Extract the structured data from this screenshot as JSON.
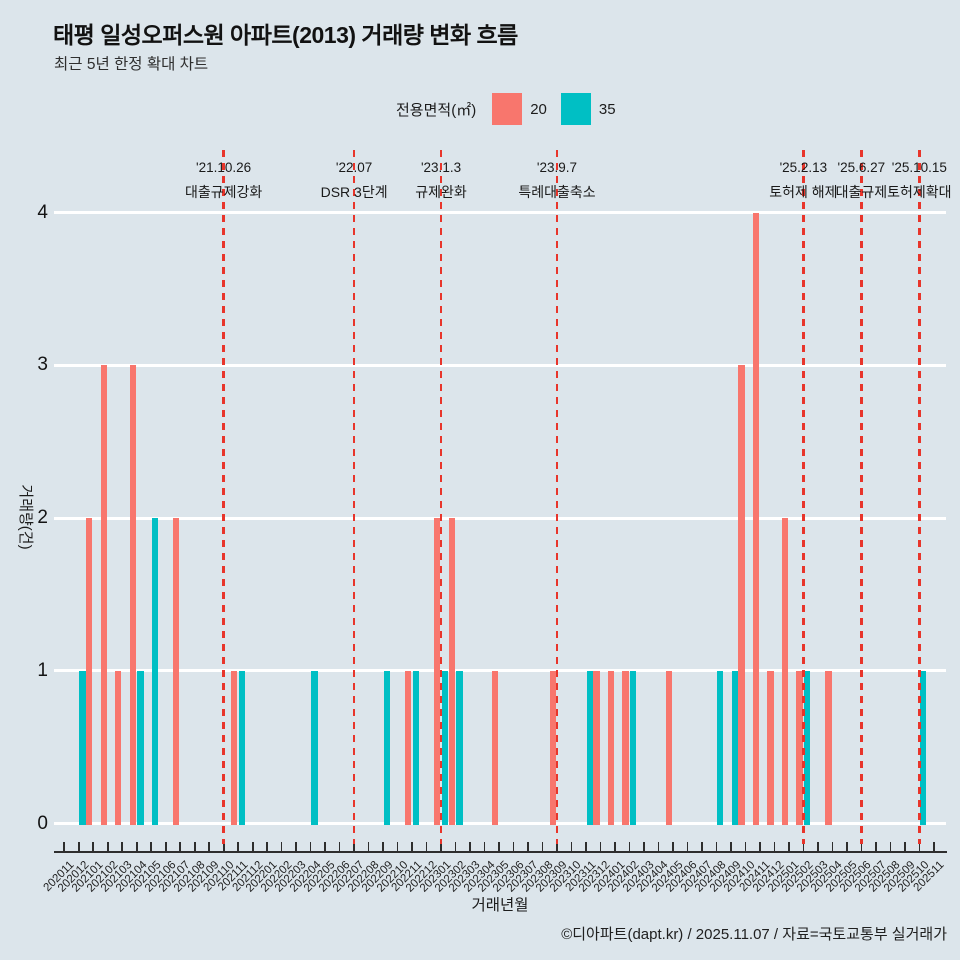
{
  "header": {
    "title": "태평 일성오퍼스원 아파트(2013) 거래량 변화 흐름",
    "subtitle": "최근 5년 한정 확대 차트"
  },
  "legend": {
    "label": "전용면적(㎡)",
    "items": [
      {
        "name": "20",
        "color": "#f8766d"
      },
      {
        "name": "35",
        "color": "#00bfc4"
      }
    ]
  },
  "footer": {
    "credit": "©디아파트(dapt.kr) / 2025.11.07 / 자료=국토교통부 실거래가"
  },
  "chart_data": {
    "type": "bar",
    "title": "태평 일성오퍼스원 아파트(2013) 거래량 변화 흐름",
    "xlabel": "거래년월",
    "ylabel": "거래량(건)",
    "ylim": [
      0,
      4
    ],
    "yticks": [
      0,
      1,
      2,
      3,
      4
    ],
    "grid": "white horizontal major gridlines",
    "legend_position": "top",
    "categories": [
      "202011",
      "202012",
      "202101",
      "202102",
      "202103",
      "202104",
      "202105",
      "202106",
      "202107",
      "202108",
      "202109",
      "202110",
      "202111",
      "202112",
      "202201",
      "202202",
      "202203",
      "202204",
      "202205",
      "202206",
      "202207",
      "202208",
      "202209",
      "202210",
      "202211",
      "202212",
      "202301",
      "202302",
      "202303",
      "202304",
      "202305",
      "202306",
      "202307",
      "202308",
      "202309",
      "202310",
      "202311",
      "202312",
      "202401",
      "202402",
      "202403",
      "202404",
      "202405",
      "202406",
      "202407",
      "202408",
      "202409",
      "202410",
      "202411",
      "202412",
      "202501",
      "202502",
      "202503",
      "202504",
      "202505",
      "202506",
      "202507",
      "202508",
      "202509",
      "202510",
      "202511"
    ],
    "series": [
      {
        "name": "20",
        "color": "#f8766d",
        "values": [
          0,
          0,
          2,
          3,
          1,
          3,
          0,
          0,
          2,
          0,
          0,
          0,
          1,
          0,
          0,
          0,
          0,
          0,
          0,
          0,
          0,
          0,
          0,
          0,
          1,
          0,
          2,
          2,
          0,
          0,
          1,
          0,
          0,
          0,
          1,
          0,
          0,
          1,
          1,
          1,
          0,
          0,
          1,
          0,
          0,
          0,
          0,
          3,
          4,
          1,
          2,
          1,
          0,
          1,
          0,
          0,
          0,
          0,
          0,
          0,
          0
        ]
      },
      {
        "name": "35",
        "color": "#00bfc4",
        "values": [
          0,
          1,
          0,
          0,
          0,
          1,
          2,
          0,
          0,
          0,
          0,
          0,
          1,
          0,
          0,
          0,
          0,
          1,
          0,
          0,
          0,
          0,
          1,
          0,
          1,
          0,
          1,
          1,
          0,
          0,
          0,
          0,
          0,
          0,
          0,
          0,
          1,
          0,
          0,
          1,
          0,
          0,
          0,
          0,
          0,
          1,
          1,
          0,
          0,
          0,
          0,
          1,
          0,
          0,
          0,
          0,
          0,
          0,
          0,
          1,
          0
        ]
      }
    ],
    "annotations": [
      {
        "date": "'21.10.26",
        "label": "대출규제강화",
        "month": "202110"
      },
      {
        "date": "'22.07",
        "label": "DSR 3단계",
        "month": "202207"
      },
      {
        "date": "'23.1.3",
        "label": "규제완화",
        "month": "202301"
      },
      {
        "date": "'23.9.7",
        "label": "특례대출축소",
        "month": "202309"
      },
      {
        "date": "'25.2.13",
        "label": "토허제 해제",
        "month": "202502"
      },
      {
        "date": "'25.6.27",
        "label": "대출규제",
        "month": "202506"
      },
      {
        "date": "'25.10.15",
        "label": "토허제확대",
        "month": "202510"
      }
    ],
    "annotation_line_color": "#e8352b"
  }
}
